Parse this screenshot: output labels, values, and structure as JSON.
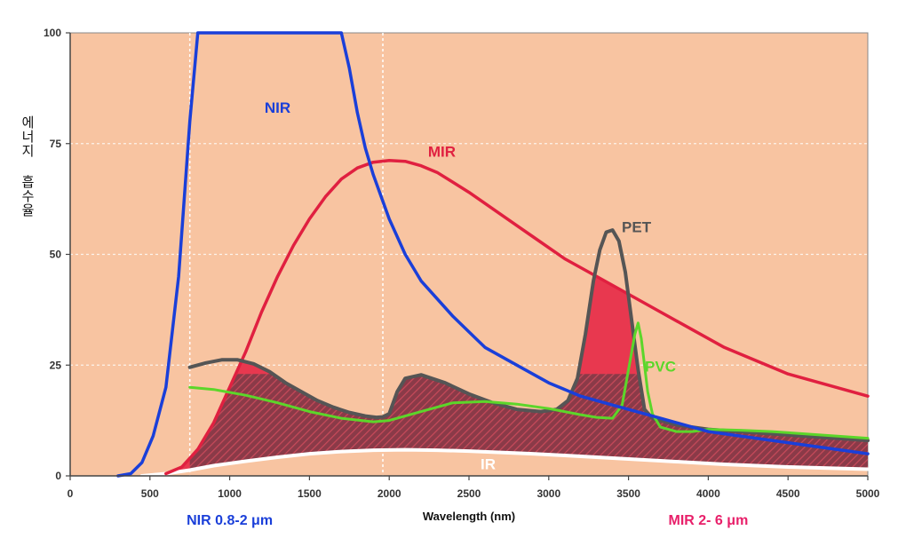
{
  "chart_data": {
    "type": "line",
    "xlabel": "Wavelength (nm)",
    "ylabel": "에너지 흡수율",
    "xlim": [
      0,
      5000
    ],
    "ylim": [
      0,
      100
    ],
    "xticks": [
      0,
      500,
      1000,
      1500,
      2000,
      2500,
      3000,
      3500,
      4000,
      4500,
      5000
    ],
    "yticks": [
      0,
      25,
      50,
      75,
      100
    ],
    "grid": true,
    "background": "#f8c4a1",
    "vlines": [
      750,
      1960
    ],
    "range_labels": [
      {
        "text": "NIR 0.8-2 μm",
        "color": "#1a3fd9",
        "x": 1000
      },
      {
        "text": "MIR 2- 6 μm",
        "color": "#e8206a",
        "x": 4000
      }
    ],
    "series": [
      {
        "name": "NIR",
        "color": "#1a3fd9",
        "label_at": [
          1300,
          82
        ],
        "x": [
          300,
          380,
          450,
          520,
          600,
          680,
          750,
          800,
          840,
          1700,
          1750,
          1800,
          1850,
          1900,
          1950,
          2000,
          2100,
          2200,
          2400,
          2600,
          2800,
          3000,
          3200,
          3400,
          3600,
          3800,
          4000,
          4200,
          4400,
          4600,
          4800,
          5000
        ],
        "y": [
          0,
          0.5,
          3,
          9,
          20,
          45,
          80,
          100,
          100,
          100,
          92,
          82,
          74,
          68,
          63,
          58,
          50,
          44,
          36,
          29,
          25,
          21,
          18,
          16,
          14,
          12,
          10,
          9,
          8,
          7,
          6,
          5
        ]
      },
      {
        "name": "MIR",
        "color": "#e02040",
        "label_at": [
          2330,
          72
        ],
        "x": [
          600,
          700,
          800,
          900,
          1000,
          1100,
          1200,
          1300,
          1400,
          1500,
          1600,
          1700,
          1800,
          1900,
          2000,
          2100,
          2200,
          2300,
          2500,
          2700,
          2900,
          3100,
          3300,
          3500,
          3700,
          3900,
          4100,
          4300,
          4500,
          4700,
          5000
        ],
        "y": [
          0.5,
          2,
          6,
          12,
          20,
          28,
          37,
          45,
          52,
          58,
          63,
          67,
          69.5,
          70.8,
          71.2,
          71,
          70,
          68.5,
          64,
          59,
          54,
          49,
          45,
          41,
          37,
          33,
          29,
          26,
          23,
          21,
          18
        ]
      },
      {
        "name": "PET",
        "color": "#555555",
        "label_at": [
          3550,
          55
        ],
        "x": [
          750,
          850,
          950,
          1050,
          1150,
          1250,
          1350,
          1450,
          1550,
          1650,
          1750,
          1850,
          1920,
          1960,
          2000,
          2050,
          2100,
          2200,
          2350,
          2500,
          2650,
          2800,
          2950,
          3050,
          3120,
          3180,
          3230,
          3280,
          3320,
          3360,
          3400,
          3440,
          3480,
          3520,
          3560,
          3600,
          3650,
          3700,
          3800,
          3900,
          4000,
          4200,
          4400,
          4600,
          4800,
          5000
        ],
        "y": [
          24.5,
          25.5,
          26.2,
          26.2,
          25.3,
          23.5,
          21,
          19,
          17,
          15.5,
          14.3,
          13.5,
          13.2,
          13.3,
          14,
          19,
          22,
          22.8,
          21,
          18.5,
          16.5,
          15,
          14.5,
          15,
          17,
          22,
          32,
          44,
          51,
          55,
          55.5,
          53,
          46,
          35,
          24,
          15,
          13,
          12.5,
          11.5,
          11,
          10.5,
          10,
          9.5,
          9,
          8.5,
          8
        ]
      },
      {
        "name": "PVC",
        "color": "#5cd62a",
        "label_at": [
          3700,
          23.5
        ],
        "x": [
          750,
          900,
          1100,
          1300,
          1500,
          1700,
          1900,
          2000,
          2200,
          2400,
          2600,
          2800,
          3000,
          3200,
          3300,
          3400,
          3460,
          3500,
          3540,
          3560,
          3580,
          3620,
          3650,
          3700,
          3800,
          3900,
          4000,
          4200,
          4400,
          4600,
          4800,
          5000
        ],
        "y": [
          20,
          19.5,
          18.2,
          16.5,
          14.5,
          13,
          12.2,
          12.5,
          14.5,
          16.5,
          16.8,
          16.2,
          15.2,
          13.8,
          13.2,
          13,
          16,
          24,
          32,
          34.5,
          31,
          19,
          14,
          11,
          10,
          10,
          10.5,
          10.3,
          10,
          9.5,
          9,
          8.5
        ]
      },
      {
        "name": "IR",
        "color": "#ffffff",
        "label_at": [
          2620,
          1.5
        ],
        "x": [
          450,
          600,
          750,
          900,
          1100,
          1300,
          1500,
          1700,
          1900,
          2100,
          2300,
          2500,
          2700,
          2900,
          3100,
          3300,
          3500,
          3700,
          3900,
          4100,
          4300,
          4500,
          4700,
          5000
        ],
        "y": [
          0,
          0.5,
          1.3,
          2.3,
          3.3,
          4.2,
          5,
          5.5,
          5.8,
          5.9,
          5.8,
          5.6,
          5.3,
          5,
          4.6,
          4.2,
          3.8,
          3.4,
          3,
          2.6,
          2.3,
          2,
          1.8,
          1.5
        ]
      }
    ]
  }
}
